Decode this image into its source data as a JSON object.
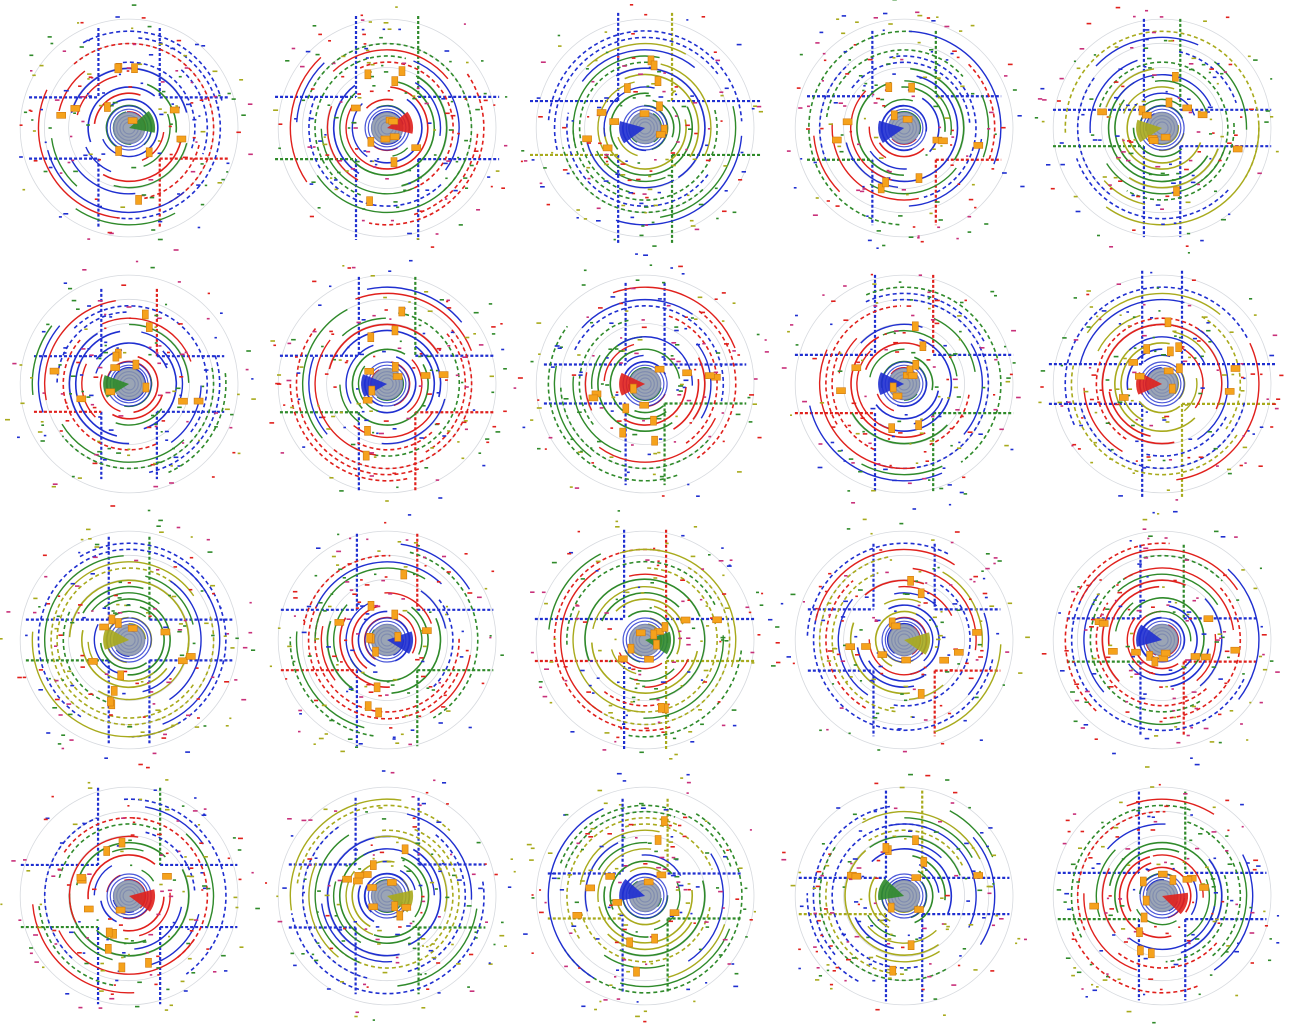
{
  "figure": {
    "description_visible_text": "",
    "rows": 4,
    "columns": 5,
    "palette": {
      "background": "#ffffff",
      "blue": "#1f2fd0",
      "red": "#e0201c",
      "green": "#2f8a2a",
      "olive": "#a8aa1c",
      "gray_center": "#8a95a8",
      "orange_box": "#f5a21c",
      "magenta": "#c8307a",
      "faint_ring": "#d6d9de"
    },
    "panels": [
      {
        "id": "r1c1",
        "accent": [
          "#2f8a2a",
          "#1f2fd0",
          "#e0201c"
        ],
        "seed": 11
      },
      {
        "id": "r1c2",
        "accent": [
          "#e0201c",
          "#2f8a2a",
          "#1f2fd0"
        ],
        "seed": 23
      },
      {
        "id": "r1c3",
        "accent": [
          "#1f2fd0",
          "#a8aa1c",
          "#2f8a2a"
        ],
        "seed": 37
      },
      {
        "id": "r1c4",
        "accent": [
          "#1f2fd0",
          "#2f8a2a",
          "#e0201c"
        ],
        "seed": 41
      },
      {
        "id": "r1c5",
        "accent": [
          "#a8aa1c",
          "#2f8a2a",
          "#1f2fd0"
        ],
        "seed": 53
      },
      {
        "id": "r2c1",
        "accent": [
          "#2f8a2a",
          "#e0201c",
          "#1f2fd0"
        ],
        "seed": 61
      },
      {
        "id": "r2c2",
        "accent": [
          "#1f2fd0",
          "#2f8a2a",
          "#e0201c"
        ],
        "seed": 73
      },
      {
        "id": "r2c3",
        "accent": [
          "#e0201c",
          "#1f2fd0",
          "#2f8a2a"
        ],
        "seed": 89
      },
      {
        "id": "r2c4",
        "accent": [
          "#1f2fd0",
          "#e0201c",
          "#2f8a2a"
        ],
        "seed": 97
      },
      {
        "id": "r2c5",
        "accent": [
          "#e0201c",
          "#1f2fd0",
          "#a8aa1c"
        ],
        "seed": 101
      },
      {
        "id": "r3c1",
        "accent": [
          "#a8aa1c",
          "#2f8a2a",
          "#1f2fd0"
        ],
        "seed": 113
      },
      {
        "id": "r3c2",
        "accent": [
          "#1f2fd0",
          "#e0201c",
          "#2f8a2a"
        ],
        "seed": 127
      },
      {
        "id": "r3c3",
        "accent": [
          "#2f8a2a",
          "#e0201c",
          "#a8aa1c"
        ],
        "seed": 131
      },
      {
        "id": "r3c4",
        "accent": [
          "#a8aa1c",
          "#1f2fd0",
          "#e0201c"
        ],
        "seed": 139
      },
      {
        "id": "r3c5",
        "accent": [
          "#1f2fd0",
          "#2f8a2a",
          "#e0201c"
        ],
        "seed": 149
      },
      {
        "id": "r4c1",
        "accent": [
          "#e0201c",
          "#2f8a2a",
          "#1f2fd0"
        ],
        "seed": 151
      },
      {
        "id": "r4c2",
        "accent": [
          "#a8aa1c",
          "#1f2fd0",
          "#2f8a2a"
        ],
        "seed": 163
      },
      {
        "id": "r4c3",
        "accent": [
          "#1f2fd0",
          "#a8aa1c",
          "#2f8a2a"
        ],
        "seed": 173
      },
      {
        "id": "r4c4",
        "accent": [
          "#2f8a2a",
          "#a8aa1c",
          "#1f2fd0"
        ],
        "seed": 181
      },
      {
        "id": "r4c5",
        "accent": [
          "#e0201c",
          "#2f8a2a",
          "#1f2fd0"
        ],
        "seed": 191
      }
    ]
  }
}
